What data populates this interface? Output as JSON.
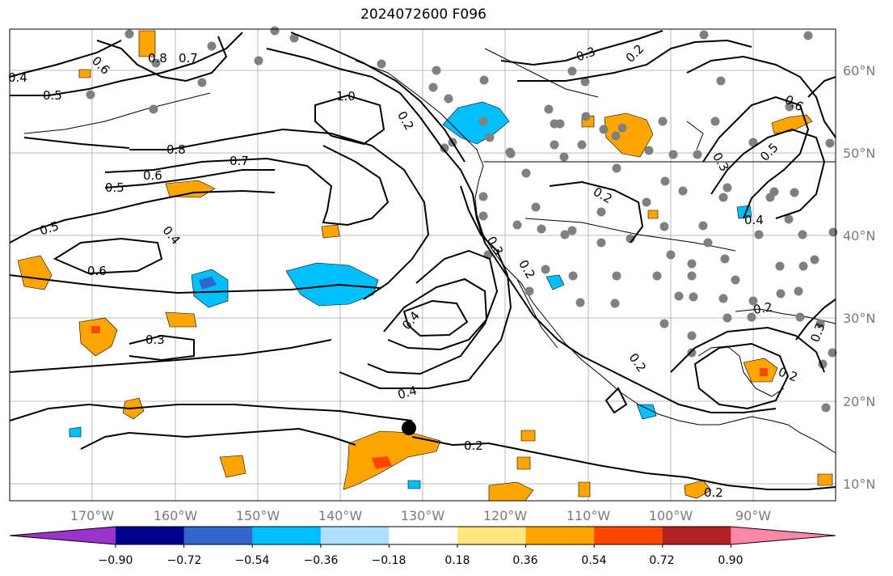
{
  "title": "2024072600 F096",
  "map": {
    "lon_range": [
      -180,
      -80
    ],
    "lat_range": [
      8,
      65
    ],
    "grid": true,
    "lon_ticks": [
      "170°W",
      "160°W",
      "150°W",
      "140°W",
      "130°W",
      "120°W",
      "110°W",
      "100°W",
      "90°W"
    ],
    "lat_ticks": [
      "60°N",
      "50°N",
      "40°N",
      "30°N",
      "20°N",
      "10°N"
    ],
    "contour_labels": [
      "0.4",
      "0.5",
      "0.6",
      "0.8",
      "0.7",
      "1.0",
      "0.5",
      "0.6",
      "0.7",
      "0.8",
      "0.3",
      "0.2",
      "0.4",
      "0.3",
      "0.2",
      "0.2",
      "0.2",
      "0.2",
      "0.5",
      "0.6",
      "0.4",
      "0.2",
      "0.3",
      "0.2",
      "0.5",
      "0.4",
      "0.3",
      "0.6",
      "0.4",
      "0.2",
      "0.3",
      "0.2"
    ]
  },
  "colorbar": {
    "ticks": [
      "−0.90",
      "−0.72",
      "−0.54",
      "−0.36",
      "−0.18",
      "0.18",
      "0.36",
      "0.54",
      "0.72",
      "0.90"
    ],
    "colors": [
      "#9933cc",
      "#00008b",
      "#3366cc",
      "#00bfff",
      "#aee0ff",
      "#ffffff",
      "#ffe680",
      "#ffa500",
      "#ff4500",
      "#b22222",
      "#ff88aa"
    ]
  },
  "colors": {
    "contour": "#000000",
    "orange": "#ffa500",
    "red": "#ff4500",
    "cyan": "#00bfff",
    "blue": "#3366cc",
    "dot": "#808080"
  }
}
